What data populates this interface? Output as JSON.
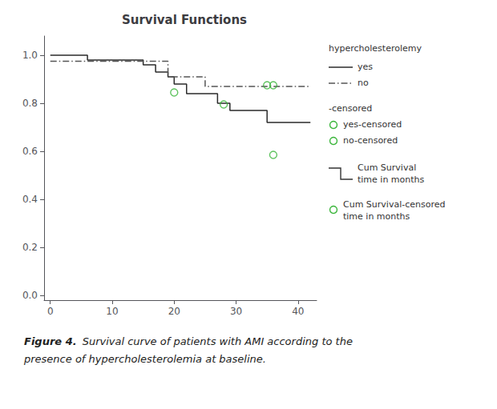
{
  "chart_data": {
    "type": "line",
    "title": "Survival Functions",
    "xlim": [
      -1,
      43
    ],
    "ylim": [
      -0.02,
      1.08
    ],
    "xticks": [
      0,
      10,
      20,
      30,
      40
    ],
    "yticks": [
      {
        "value": 0.0,
        "label": "0.0"
      },
      0.2,
      0.4,
      0.6,
      0.8,
      {
        "value": 1.0,
        "label": "1.0"
      }
    ],
    "grid": false,
    "legend": "right",
    "series": [
      {
        "name": "yes",
        "type": "line",
        "color": "#2b2b2b",
        "line_style": "solid",
        "x": [
          0,
          6,
          6,
          15,
          15,
          17,
          17,
          19,
          19,
          20,
          20,
          22,
          22,
          27,
          27,
          29,
          29,
          35,
          35,
          36,
          36,
          42
        ],
        "values": [
          1.0,
          1.0,
          0.98,
          0.98,
          0.96,
          0.96,
          0.93,
          0.93,
          0.91,
          0.91,
          0.88,
          0.88,
          0.84,
          0.84,
          0.8,
          0.8,
          0.77,
          0.77,
          0.72,
          0.72,
          0.72,
          0.72
        ]
      },
      {
        "name": "no",
        "type": "line",
        "color": "#555555",
        "line_style": "dashdot",
        "x": [
          0,
          19,
          19,
          21,
          21,
          25,
          25,
          28,
          28,
          35,
          35,
          36,
          36,
          42
        ],
        "values": [
          0.975,
          0.975,
          0.91,
          0.91,
          0.91,
          0.91,
          0.87,
          0.87,
          0.87,
          0.87,
          0.87,
          0.87,
          0.87,
          0.87
        ]
      },
      {
        "name": "yes-censored",
        "type": "scatter",
        "color": "#3ab53a",
        "marker": "open circle",
        "x": [
          35
        ],
        "values": [
          0.875
        ]
      },
      {
        "name": "no-censored",
        "type": "scatter",
        "color": "#3ab53a",
        "marker": "open circle",
        "x": [
          20,
          28,
          36
        ],
        "values": [
          0.845,
          0.795,
          0.875
        ]
      },
      {
        "type": "scatter",
        "color": "#3ab53a",
        "marker": "open circle",
        "x": [
          36
        ],
        "values": [
          0.585
        ]
      }
    ],
    "annotations": [
      "hypercholesterolemy",
      "-censored",
      "Cum Survival",
      "time in months",
      "Cum Survival-censored",
      "time in months",
      "Figure 4.",
      "Survival curve of patients with AMI according to the",
      "presence of hypercholesterolemia at baseline."
    ]
  }
}
